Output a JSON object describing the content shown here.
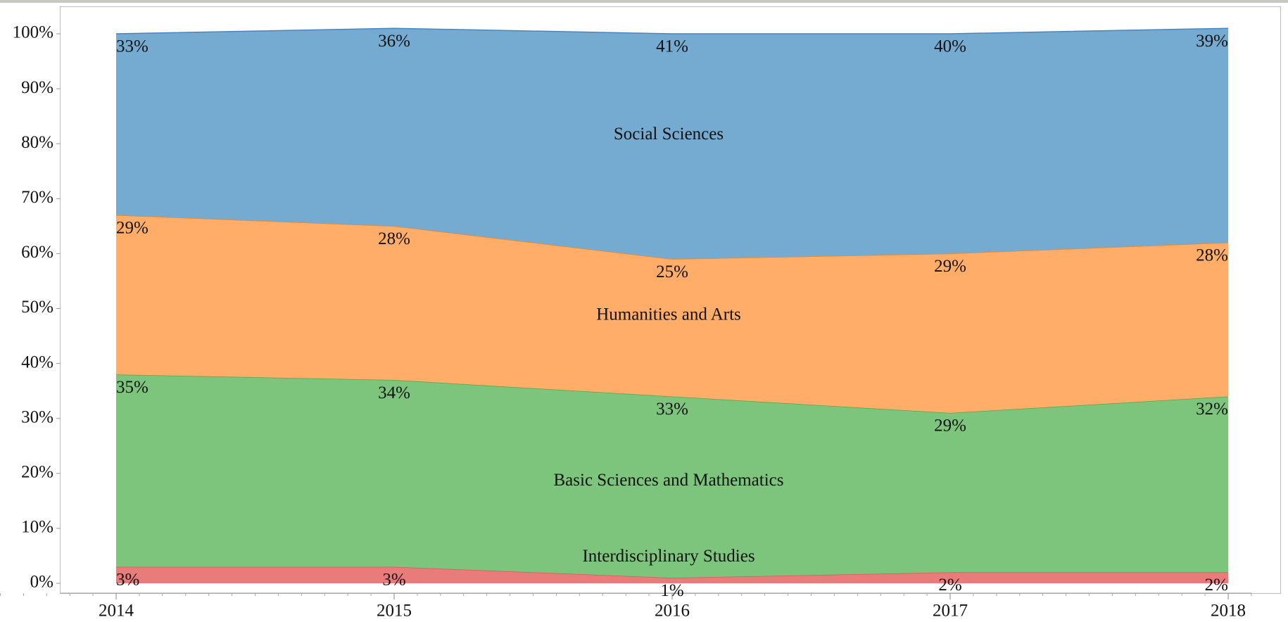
{
  "chart_data": {
    "type": "stacked_area",
    "categories": [
      "2014",
      "2015",
      "2016",
      "2017",
      "2018"
    ],
    "series": [
      {
        "name": "Interdisciplinary Studies",
        "color": "#e97b7b",
        "values": [
          3,
          3,
          1,
          2,
          2
        ],
        "value_labels": [
          "3%",
          "3%",
          "1%",
          "2%",
          "2%"
        ]
      },
      {
        "name": "Basic Sciences and Mathematics",
        "color": "#7dc57c",
        "values": [
          35,
          34,
          33,
          29,
          32
        ],
        "value_labels": [
          "35%",
          "34%",
          "33%",
          "29%",
          "32%"
        ]
      },
      {
        "name": "Humanities and Arts",
        "color": "#ffad68",
        "values": [
          29,
          28,
          25,
          29,
          28
        ],
        "value_labels": [
          "29%",
          "28%",
          "25%",
          "29%",
          "28%"
        ]
      },
      {
        "name": "Social Sciences",
        "color": "#75aad1",
        "values": [
          33,
          36,
          41,
          40,
          39
        ],
        "value_labels": [
          "33%",
          "36%",
          "41%",
          "40%",
          "39%"
        ]
      }
    ],
    "ylim": [
      0,
      100
    ],
    "yticks": [
      {
        "value": 0,
        "label": "0%"
      },
      {
        "value": 10,
        "label": "10%"
      },
      {
        "value": 20,
        "label": "20%"
      },
      {
        "value": 30,
        "label": "30%"
      },
      {
        "value": 40,
        "label": "40%"
      },
      {
        "value": 50,
        "label": "50%"
      },
      {
        "value": 60,
        "label": "60%"
      },
      {
        "value": 70,
        "label": "70%"
      },
      {
        "value": 80,
        "label": "80%"
      },
      {
        "value": 90,
        "label": "90%"
      },
      {
        "value": 100,
        "label": "100%"
      }
    ],
    "grid": false
  }
}
